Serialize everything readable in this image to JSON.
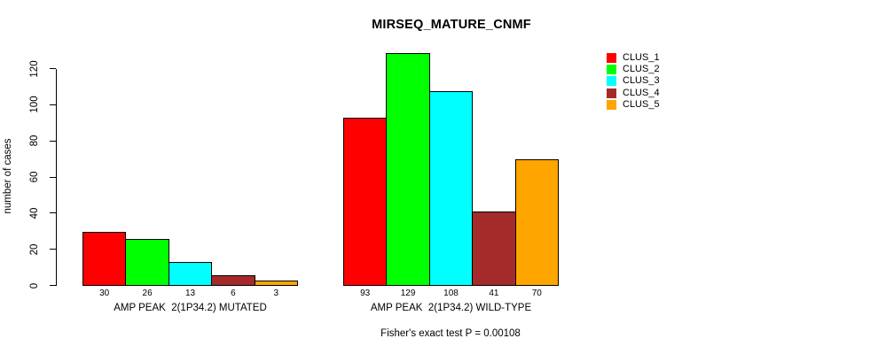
{
  "chart_data": {
    "type": "bar",
    "title": "MIRSEQ_MATURE_CNMF",
    "ylabel": "number of cases",
    "ylim": [
      0,
      120
    ],
    "yticks": [
      0,
      20,
      40,
      60,
      80,
      100,
      120
    ],
    "grid": false,
    "legend_position": "top-right",
    "categories": [
      "AMP PEAK  2(1P34.2) MUTATED",
      "AMP PEAK  2(1P34.2) WILD-TYPE"
    ],
    "series": [
      {
        "name": "CLUS_1",
        "color": "#FF0000",
        "values": [
          30,
          93
        ]
      },
      {
        "name": "CLUS_2",
        "color": "#00FF00",
        "values": [
          26,
          129
        ]
      },
      {
        "name": "CLUS_3",
        "color": "#00FFFF",
        "values": [
          13,
          108
        ]
      },
      {
        "name": "CLUS_4",
        "color": "#A52A2A",
        "values": [
          6,
          41
        ]
      },
      {
        "name": "CLUS_5",
        "color": "#FFA500",
        "values": [
          3,
          70
        ]
      }
    ],
    "bar_value_labels": [
      [
        30,
        26,
        13,
        6,
        3
      ],
      [
        93,
        129,
        108,
        41,
        70
      ]
    ],
    "annotation": "Fisher's exact test P = 0.00108",
    "colors": {
      "background": "#FFFFFF",
      "axis": "#000000",
      "text": "#000000"
    }
  }
}
